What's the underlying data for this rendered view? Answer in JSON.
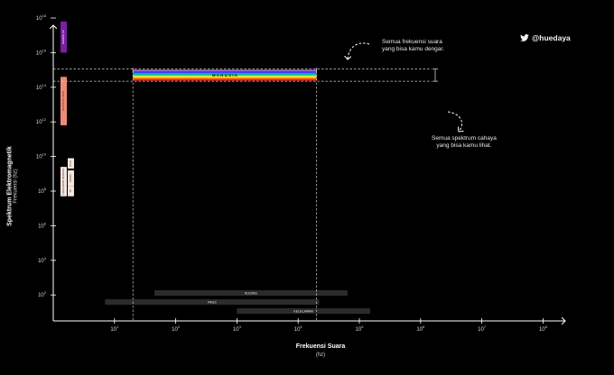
{
  "handle": "@huedaya",
  "annotations": {
    "sound": [
      "Semua frekuensi suara",
      "yang bisa kamu dengar."
    ],
    "light": [
      "Semua spektrum cahaya",
      "yang bisa kamu lihat."
    ]
  },
  "colors": {
    "background": "#000000",
    "axis": "#ffffff",
    "radio": "#f2e6df",
    "infrared": "#f08a78",
    "gamma": "#7b1fa2",
    "sound_bar": "#2b2b2b",
    "spectrum": [
      "#8a2be2",
      "#3b3bff",
      "#2196f3",
      "#00e676",
      "#ffeb3b",
      "#ff9800",
      "#ff1f1f"
    ]
  },
  "chart_data": {
    "type": "bar",
    "xlabel": "Frekuensi Suara",
    "xunit": "(hz)",
    "ylabel": "Spektrum Elektromagnetik",
    "yunit": "Frekuensi (hz)",
    "x_ticks": [
      {
        "base": "10",
        "exp": "1"
      },
      {
        "base": "10",
        "exp": "2"
      },
      {
        "base": "10",
        "exp": "3"
      },
      {
        "base": "10",
        "exp": "4"
      },
      {
        "base": "10",
        "exp": "5"
      },
      {
        "base": "10",
        "exp": "6"
      },
      {
        "base": "10",
        "exp": "7"
      },
      {
        "base": "10",
        "exp": "8"
      }
    ],
    "y_ticks": [
      {
        "base": "10",
        "exp": "2"
      },
      {
        "base": "10",
        "exp": "4"
      },
      {
        "base": "10",
        "exp": "6"
      },
      {
        "base": "10",
        "exp": "8"
      },
      {
        "base": "10",
        "exp": "10"
      },
      {
        "base": "10",
        "exp": "12"
      },
      {
        "base": "10",
        "exp": "14"
      },
      {
        "base": "10",
        "exp": "16"
      },
      {
        "base": "10",
        "exp": "18"
      }
    ],
    "em_bands": [
      {
        "label": "RADIASI UV",
        "from": 16,
        "to": 17.8,
        "color": "#7b1fa2"
      },
      {
        "label": "TELESCOP JAUH",
        "from": 11.8,
        "to": 14.6,
        "color": "#f08a78"
      },
      {
        "label": "WI-FI",
        "from": 9.3,
        "to": 9.9,
        "color": "#f2e6df",
        "col": 1
      },
      {
        "label": "RADIO",
        "from": 8.3,
        "to": 9.2,
        "color": "#f2e6df",
        "col": 1
      },
      {
        "label": "TV",
        "from": 7.7,
        "to": 8.3,
        "color": "#f2e6df",
        "col": 1
      },
      {
        "label": "FREKUENSI RENDAH",
        "from": 7.7,
        "to": 9.4,
        "color": "#f2e6df",
        "col": 0
      }
    ],
    "visible_light": {
      "label": "M A N U S I A",
      "from": 14.4,
      "to": 15.0,
      "x_from": 20,
      "x_to": 20000
    },
    "sound_ranges": [
      {
        "label": "KUCING",
        "from": 45,
        "to": 64000
      },
      {
        "label": "PAUS",
        "from": 7,
        "to": 22000
      },
      {
        "label": "KELELAWAR",
        "from": 1000,
        "to": 150000
      }
    ],
    "xlim_log": [
      0,
      8.5
    ],
    "ylim_log": [
      0.5,
      18.5
    ]
  }
}
